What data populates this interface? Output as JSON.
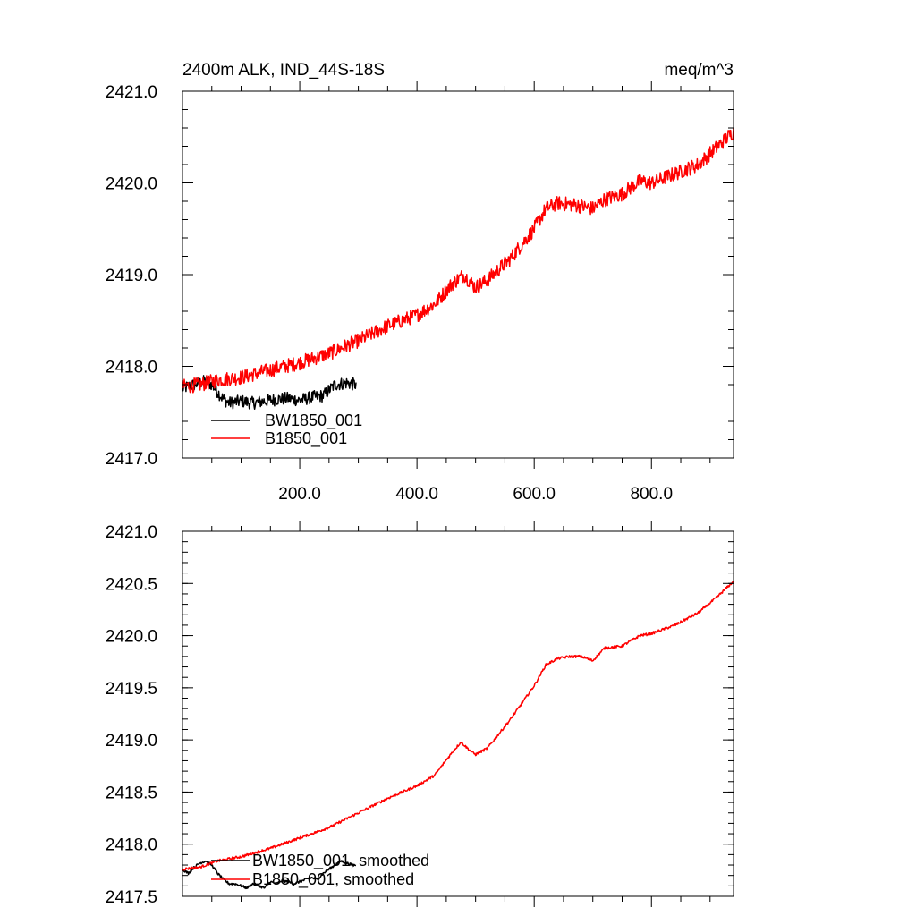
{
  "chart_data": [
    {
      "type": "line",
      "title_left": "2400m ALK, IND_44S-18S",
      "title_right": "meq/m^3",
      "xlim": [
        0,
        940
      ],
      "ylim": [
        2417.0,
        2421.0
      ],
      "x_ticks": [
        200,
        400,
        600,
        800
      ],
      "x_tick_labels": [
        "200.0",
        "400.0",
        "600.0",
        "800.0"
      ],
      "y_ticks": [
        2417.0,
        2418.0,
        2419.0,
        2420.0,
        2421.0
      ],
      "y_tick_labels": [
        "2417.0",
        "2418.0",
        "2419.0",
        "2420.0",
        "2421.0"
      ],
      "legend": [
        "BW1850_001",
        "B1850_001"
      ],
      "series": [
        {
          "name": "BW1850_001",
          "color": "#000000",
          "noise": 0.07,
          "x": [
            0,
            20,
            40,
            50,
            60,
            70,
            80,
            100,
            120,
            140,
            160,
            180,
            200,
            220,
            240,
            260,
            280,
            296
          ],
          "y": [
            2417.76,
            2417.8,
            2417.84,
            2417.8,
            2417.72,
            2417.64,
            2417.6,
            2417.62,
            2417.6,
            2417.62,
            2417.64,
            2417.65,
            2417.63,
            2417.66,
            2417.68,
            2417.8,
            2417.82,
            2417.8
          ]
        },
        {
          "name": "B1850_001",
          "color": "#ff0000",
          "noise": 0.08,
          "x": [
            0,
            30,
            60,
            100,
            150,
            200,
            250,
            300,
            350,
            400,
            430,
            460,
            480,
            500,
            520,
            540,
            560,
            580,
            600,
            620,
            640,
            670,
            700,
            720,
            750,
            780,
            800,
            840,
            880,
            910,
            940
          ],
          "y": [
            2417.78,
            2417.8,
            2417.85,
            2417.88,
            2417.96,
            2418.04,
            2418.14,
            2418.28,
            2418.44,
            2418.56,
            2418.68,
            2418.9,
            2419.0,
            2418.86,
            2418.94,
            2419.06,
            2419.18,
            2419.34,
            2419.5,
            2419.72,
            2419.78,
            2419.76,
            2419.72,
            2419.82,
            2419.88,
            2420.02,
            2420.0,
            2420.1,
            2420.2,
            2420.38,
            2420.56
          ]
        }
      ]
    },
    {
      "type": "line",
      "xlim": [
        0,
        940
      ],
      "ylim": [
        2417.5,
        2421.0
      ],
      "x_ticks": [
        200,
        400,
        600,
        800
      ],
      "y_ticks": [
        2417.5,
        2418.0,
        2418.5,
        2419.0,
        2419.5,
        2420.0,
        2420.5,
        2421.0
      ],
      "y_tick_labels": [
        "2417.5",
        "2418.0",
        "2418.5",
        "2419.0",
        "2419.5",
        "2420.0",
        "2420.5",
        "2421.0"
      ],
      "legend": [
        "BW1850_001, smoothed",
        "B1850_001, smoothed"
      ],
      "series": [
        {
          "name": "BW1850_001, smoothed",
          "color": "#000000",
          "noise": 0.012,
          "x": [
            0,
            10,
            20,
            30,
            40,
            50,
            60,
            70,
            80,
            90,
            100,
            110,
            120,
            130,
            140,
            150,
            160,
            170,
            180,
            190,
            200,
            210,
            220,
            230,
            240,
            250,
            260,
            270,
            280,
            290,
            296
          ],
          "y": [
            2417.76,
            2417.72,
            2417.78,
            2417.82,
            2417.84,
            2417.8,
            2417.72,
            2417.66,
            2417.62,
            2417.62,
            2417.6,
            2417.58,
            2417.62,
            2417.6,
            2417.58,
            2417.64,
            2417.62,
            2417.65,
            2417.64,
            2417.62,
            2417.64,
            2417.66,
            2417.68,
            2417.66,
            2417.72,
            2417.76,
            2417.8,
            2417.84,
            2417.82,
            2417.8,
            2417.8
          ]
        },
        {
          "name": "B1850_001, smoothed",
          "color": "#ff0000",
          "noise": 0.012,
          "x": [
            0,
            30,
            60,
            100,
            150,
            200,
            250,
            300,
            350,
            400,
            430,
            460,
            475,
            490,
            500,
            520,
            540,
            560,
            580,
            600,
            620,
            640,
            660,
            680,
            700,
            720,
            750,
            780,
            800,
            840,
            880,
            910,
            940
          ],
          "y": [
            2417.76,
            2417.78,
            2417.84,
            2417.88,
            2417.96,
            2418.06,
            2418.16,
            2418.3,
            2418.44,
            2418.56,
            2418.66,
            2418.88,
            2418.98,
            2418.9,
            2418.86,
            2418.92,
            2419.06,
            2419.2,
            2419.36,
            2419.52,
            2419.72,
            2419.78,
            2419.8,
            2419.8,
            2419.76,
            2419.88,
            2419.9,
            2420.0,
            2420.02,
            2420.1,
            2420.22,
            2420.36,
            2420.52
          ]
        }
      ]
    }
  ]
}
